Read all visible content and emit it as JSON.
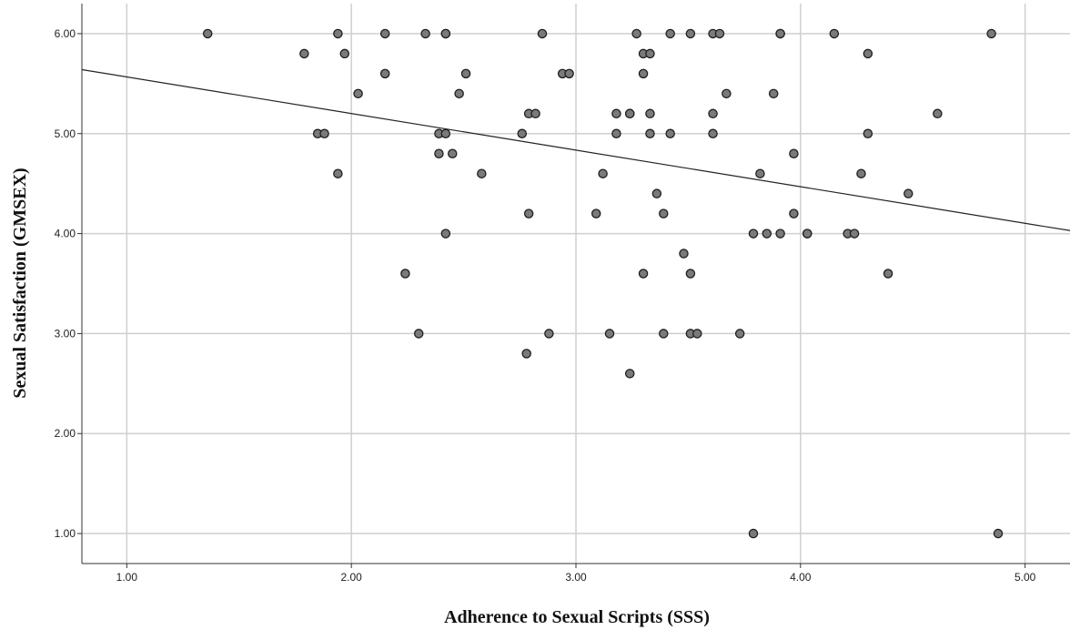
{
  "chart_data": {
    "type": "scatter",
    "title": "",
    "xlabel": "Adherence to Sexual Scripts (SSS)",
    "ylabel": "Sexual Satisfaction (GMSEX)",
    "xlim": [
      0.8,
      5.2
    ],
    "ylim": [
      0.7,
      6.3
    ],
    "x_ticks": [
      "1.00",
      "2.00",
      "3.00",
      "4.00",
      "5.00"
    ],
    "y_ticks": [
      "1.00",
      "2.00",
      "3.00",
      "4.00",
      "5.00",
      "6.00"
    ],
    "grid": true,
    "fit_line": {
      "x": [
        0.8,
        5.2
      ],
      "y": [
        5.64,
        4.03
      ]
    },
    "series": [
      {
        "points": [
          [
            1.36,
            6.0
          ],
          [
            1.79,
            5.8
          ],
          [
            1.85,
            5.0
          ],
          [
            1.88,
            5.0
          ],
          [
            1.94,
            6.0
          ],
          [
            1.94,
            4.6
          ],
          [
            1.97,
            5.8
          ],
          [
            2.03,
            5.4
          ],
          [
            2.15,
            6.0
          ],
          [
            2.15,
            5.6
          ],
          [
            2.24,
            3.6
          ],
          [
            2.3,
            3.0
          ],
          [
            2.33,
            6.0
          ],
          [
            2.39,
            5.0
          ],
          [
            2.39,
            4.8
          ],
          [
            2.42,
            6.0
          ],
          [
            2.42,
            6.0
          ],
          [
            2.42,
            5.0
          ],
          [
            2.42,
            4.0
          ],
          [
            2.45,
            4.8
          ],
          [
            2.48,
            5.4
          ],
          [
            2.51,
            5.6
          ],
          [
            2.58,
            4.6
          ],
          [
            2.76,
            5.0
          ],
          [
            2.78,
            2.8
          ],
          [
            2.79,
            5.2
          ],
          [
            2.79,
            4.2
          ],
          [
            2.82,
            5.2
          ],
          [
            2.85,
            6.0
          ],
          [
            2.88,
            3.0
          ],
          [
            2.94,
            5.6
          ],
          [
            2.97,
            5.6
          ],
          [
            3.09,
            4.2
          ],
          [
            3.12,
            4.6
          ],
          [
            3.15,
            3.0
          ],
          [
            3.18,
            5.2
          ],
          [
            3.18,
            5.0
          ],
          [
            3.24,
            5.2
          ],
          [
            3.24,
            5.2
          ],
          [
            3.24,
            2.6
          ],
          [
            3.27,
            6.0
          ],
          [
            3.3,
            5.8
          ],
          [
            3.3,
            5.6
          ],
          [
            3.3,
            3.6
          ],
          [
            3.33,
            5.8
          ],
          [
            3.33,
            5.2
          ],
          [
            3.33,
            5.0
          ],
          [
            3.36,
            4.4
          ],
          [
            3.39,
            4.2
          ],
          [
            3.39,
            3.0
          ],
          [
            3.42,
            6.0
          ],
          [
            3.42,
            5.0
          ],
          [
            3.48,
            3.8
          ],
          [
            3.51,
            6.0
          ],
          [
            3.51,
            3.6
          ],
          [
            3.51,
            3.0
          ],
          [
            3.54,
            3.0
          ],
          [
            3.61,
            6.0
          ],
          [
            3.61,
            5.2
          ],
          [
            3.61,
            5.0
          ],
          [
            3.64,
            6.0
          ],
          [
            3.67,
            5.4
          ],
          [
            3.73,
            3.0
          ],
          [
            3.79,
            4.0
          ],
          [
            3.79,
            1.0
          ],
          [
            3.82,
            4.6
          ],
          [
            3.85,
            4.0
          ],
          [
            3.88,
            5.4
          ],
          [
            3.91,
            6.0
          ],
          [
            3.91,
            6.0
          ],
          [
            3.91,
            4.0
          ],
          [
            3.97,
            4.8
          ],
          [
            3.97,
            4.2
          ],
          [
            4.03,
            4.0
          ],
          [
            4.03,
            4.0
          ],
          [
            4.15,
            6.0
          ],
          [
            4.21,
            4.0
          ],
          [
            4.24,
            4.0
          ],
          [
            4.27,
            4.6
          ],
          [
            4.3,
            5.8
          ],
          [
            4.3,
            5.0
          ],
          [
            4.39,
            3.6
          ],
          [
            4.48,
            4.4
          ],
          [
            4.61,
            5.2
          ],
          [
            4.85,
            6.0
          ],
          [
            4.88,
            1.0
          ]
        ]
      }
    ]
  }
}
